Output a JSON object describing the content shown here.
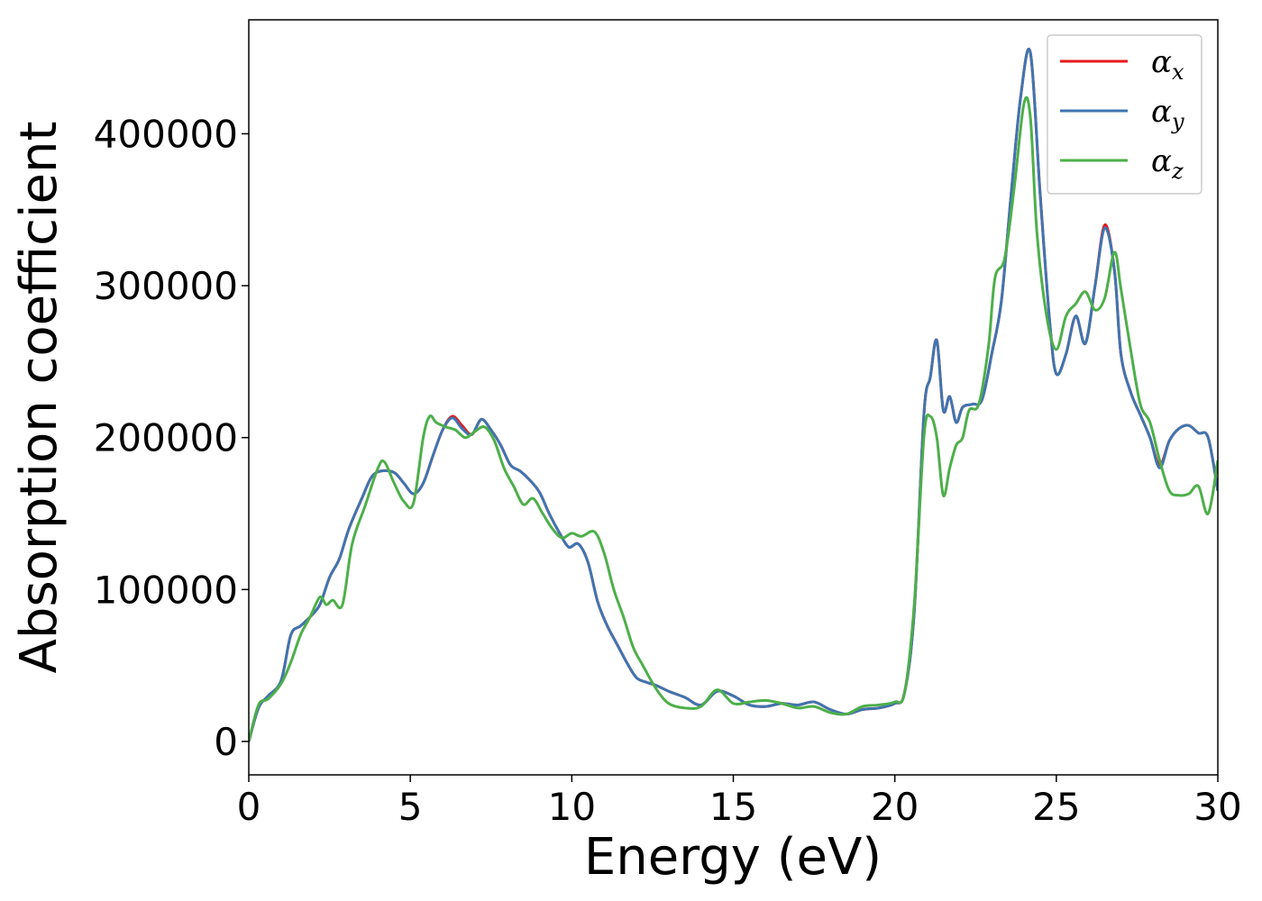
{
  "chart_data": {
    "type": "line",
    "title": "",
    "xlabel": "Energy (eV)",
    "ylabel": "Absorption coefficient",
    "xlim": [
      0,
      30
    ],
    "ylim": [
      -22000,
      475000
    ],
    "xticks": [
      0,
      5,
      10,
      15,
      20,
      25,
      30
    ],
    "xtick_labels": [
      "0",
      "5",
      "10",
      "15",
      "20",
      "25",
      "30"
    ],
    "yticks": [
      0,
      100000,
      200000,
      300000,
      400000
    ],
    "ytick_labels": [
      "0",
      "100000",
      "200000",
      "300000",
      "400000"
    ],
    "grid": false,
    "legend_position": "top-right",
    "series": [
      {
        "name": "α",
        "subscript": "x",
        "color": "#e41a1c",
        "x": [
          0,
          0.3,
          0.6,
          1.0,
          1.3,
          1.6,
          1.9,
          2.2,
          2.5,
          2.8,
          3.1,
          3.5,
          3.8,
          4.1,
          4.5,
          4.8,
          5.1,
          5.4,
          5.7,
          6.0,
          6.3,
          6.6,
          6.9,
          7.2,
          7.5,
          7.8,
          8.1,
          8.4,
          8.7,
          9.0,
          9.3,
          9.6,
          9.9,
          10.2,
          10.5,
          10.8,
          11.1,
          11.4,
          11.7,
          12.0,
          12.3,
          12.6,
          13.0,
          13.5,
          14.0,
          14.5,
          15.0,
          15.5,
          16.0,
          16.5,
          17.0,
          17.5,
          18.0,
          18.5,
          19.0,
          19.5,
          20.0,
          20.3,
          20.6,
          20.9,
          21.1,
          21.3,
          21.5,
          21.7,
          21.9,
          22.1,
          22.4,
          22.7,
          23.0,
          23.3,
          23.6,
          23.9,
          24.2,
          24.5,
          24.8,
          25.0,
          25.3,
          25.6,
          25.9,
          26.2,
          26.5,
          26.8,
          27.0,
          27.3,
          27.6,
          27.9,
          28.2,
          28.5,
          28.8,
          29.1,
          29.4,
          29.7,
          30.0
        ],
        "y": [
          0,
          22000,
          30000,
          40000,
          70000,
          76000,
          82000,
          90000,
          108000,
          120000,
          140000,
          160000,
          174000,
          178000,
          177000,
          170000,
          163000,
          170000,
          188000,
          205000,
          214000,
          208000,
          202000,
          212000,
          205000,
          195000,
          182000,
          178000,
          172000,
          164000,
          150000,
          138000,
          128000,
          130000,
          118000,
          92000,
          76000,
          64000,
          52000,
          42000,
          39000,
          37000,
          33000,
          29000,
          24000,
          33000,
          30000,
          24000,
          23000,
          25000,
          24000,
          26000,
          21000,
          18000,
          21000,
          22000,
          25000,
          32000,
          85000,
          215000,
          240000,
          264000,
          218000,
          227000,
          210000,
          220000,
          222000,
          225000,
          255000,
          290000,
          360000,
          425000,
          453000,
          360000,
          275000,
          242000,
          255000,
          280000,
          262000,
          300000,
          340000,
          310000,
          255000,
          230000,
          215000,
          200000,
          182000,
          198000,
          206000,
          208000,
          203000,
          200000,
          165000
        ]
      },
      {
        "name": "α",
        "subscript": "y",
        "color": "#3f75b0",
        "x": [
          0,
          0.3,
          0.6,
          1.0,
          1.3,
          1.6,
          1.9,
          2.2,
          2.5,
          2.8,
          3.1,
          3.5,
          3.8,
          4.1,
          4.5,
          4.8,
          5.1,
          5.4,
          5.7,
          6.0,
          6.3,
          6.6,
          6.9,
          7.2,
          7.5,
          7.8,
          8.1,
          8.4,
          8.7,
          9.0,
          9.3,
          9.6,
          9.9,
          10.2,
          10.5,
          10.8,
          11.1,
          11.4,
          11.7,
          12.0,
          12.3,
          12.6,
          13.0,
          13.5,
          14.0,
          14.5,
          15.0,
          15.5,
          16.0,
          16.5,
          17.0,
          17.5,
          18.0,
          18.5,
          19.0,
          19.5,
          20.0,
          20.3,
          20.6,
          20.9,
          21.1,
          21.3,
          21.5,
          21.7,
          21.9,
          22.1,
          22.4,
          22.7,
          23.0,
          23.3,
          23.6,
          23.9,
          24.2,
          24.5,
          24.8,
          25.0,
          25.3,
          25.6,
          25.9,
          26.2,
          26.5,
          26.8,
          27.0,
          27.3,
          27.6,
          27.9,
          28.2,
          28.5,
          28.8,
          29.1,
          29.4,
          29.7,
          30.0
        ],
        "y": [
          0,
          22000,
          30000,
          40000,
          70000,
          76000,
          82000,
          90000,
          108000,
          120000,
          140000,
          160000,
          174000,
          178000,
          177000,
          170000,
          163000,
          170000,
          188000,
          205000,
          213000,
          206000,
          202000,
          212000,
          205000,
          195000,
          182000,
          178000,
          172000,
          164000,
          150000,
          138000,
          128000,
          130000,
          118000,
          92000,
          76000,
          64000,
          52000,
          42000,
          39000,
          37000,
          33000,
          29000,
          24000,
          33000,
          30000,
          24000,
          23000,
          25000,
          24000,
          26000,
          21000,
          18000,
          21000,
          22000,
          25000,
          32000,
          85000,
          215000,
          240000,
          264000,
          218000,
          227000,
          210000,
          220000,
          222000,
          225000,
          255000,
          290000,
          360000,
          425000,
          453000,
          360000,
          275000,
          242000,
          255000,
          280000,
          262000,
          300000,
          338000,
          310000,
          255000,
          230000,
          215000,
          200000,
          180000,
          198000,
          206000,
          208000,
          203000,
          200000,
          165000
        ]
      },
      {
        "name": "α",
        "subscript": "z",
        "color": "#4daf4a",
        "x": [
          0,
          0.3,
          0.6,
          1.0,
          1.3,
          1.6,
          1.9,
          2.2,
          2.4,
          2.6,
          2.9,
          3.2,
          3.6,
          4.0,
          4.2,
          4.5,
          4.8,
          5.1,
          5.4,
          5.6,
          5.8,
          6.1,
          6.4,
          6.7,
          7.0,
          7.3,
          7.6,
          7.9,
          8.2,
          8.5,
          8.8,
          9.1,
          9.4,
          9.7,
          10.0,
          10.3,
          10.7,
          11.0,
          11.3,
          11.6,
          11.9,
          12.2,
          12.6,
          13.0,
          13.5,
          14.0,
          14.5,
          15.0,
          15.5,
          16.0,
          16.5,
          17.0,
          17.5,
          18.0,
          18.5,
          19.0,
          19.5,
          20.0,
          20.3,
          20.6,
          20.9,
          21.1,
          21.3,
          21.5,
          21.7,
          21.9,
          22.1,
          22.3,
          22.6,
          22.9,
          23.1,
          23.4,
          23.7,
          24.0,
          24.2,
          24.4,
          24.7,
          25.0,
          25.3,
          25.6,
          25.9,
          26.2,
          26.5,
          26.8,
          27.0,
          27.3,
          27.6,
          27.9,
          28.2,
          28.5,
          28.8,
          29.1,
          29.4,
          29.7,
          30.0
        ],
        "y": [
          0,
          24000,
          28000,
          38000,
          52000,
          70000,
          82000,
          95000,
          90000,
          93000,
          90000,
          130000,
          155000,
          180000,
          184000,
          170000,
          158000,
          157000,
          200000,
          214000,
          210000,
          207000,
          205000,
          200000,
          204000,
          207000,
          198000,
          180000,
          168000,
          156000,
          160000,
          150000,
          140000,
          134000,
          137000,
          135000,
          138000,
          124000,
          100000,
          82000,
          62000,
          50000,
          35000,
          25000,
          22000,
          23000,
          34000,
          25000,
          26000,
          27000,
          25000,
          22000,
          23000,
          19000,
          18000,
          23000,
          24000,
          26000,
          32000,
          90000,
          200000,
          214000,
          200000,
          162000,
          180000,
          195000,
          200000,
          218000,
          222000,
          260000,
          305000,
          318000,
          365000,
          420000,
          410000,
          335000,
          280000,
          258000,
          280000,
          288000,
          296000,
          284000,
          292000,
          322000,
          298000,
          258000,
          222000,
          210000,
          185000,
          165000,
          162000,
          163000,
          168000,
          150000,
          185000
        ]
      }
    ]
  }
}
